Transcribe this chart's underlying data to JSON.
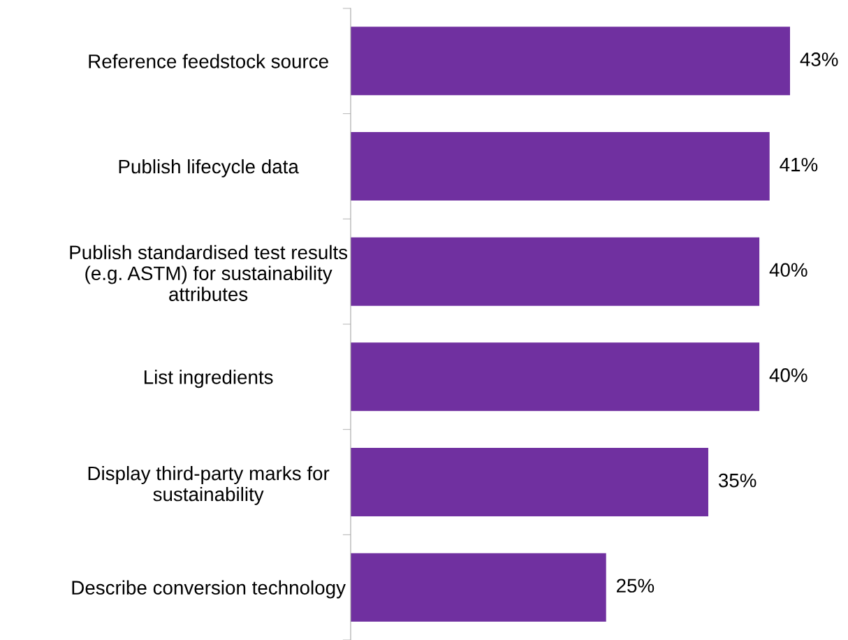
{
  "chart_data": {
    "type": "bar",
    "orientation": "horizontal",
    "categories": [
      "Reference feedstock source",
      "Publish lifecycle data",
      "Publish standardised test results\n(e.g. ASTM) for sustainability\nattributes",
      "List ingredients",
      "Display third-party marks for\nsustainability",
      "Describe conversion technology"
    ],
    "values": [
      43,
      41,
      40,
      40,
      35,
      25
    ],
    "value_labels": [
      "43%",
      "41%",
      "40%",
      "40%",
      "35%",
      "25%"
    ],
    "color": "#7030a0",
    "tick_labels": "y",
    "grid": false,
    "legend": false
  }
}
